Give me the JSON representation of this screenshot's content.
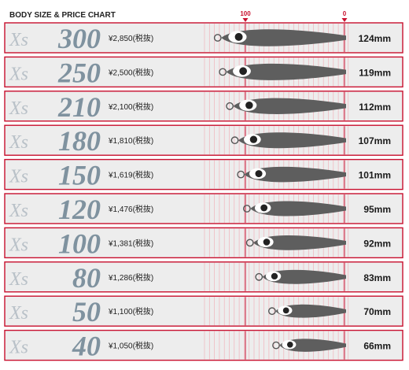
{
  "chart_data": {
    "type": "table",
    "title": "BODY SIZE & PRICE CHART",
    "scale_labels": [
      "100",
      "0"
    ],
    "colors": {
      "accent": "#c8102e",
      "row_bg": "#ededed",
      "lure_body": "#5e5e5e",
      "weight_text": "#7f929f",
      "brand_text": "#b9c1c8"
    },
    "rows": [
      {
        "brand": "Xs",
        "weight": "300",
        "price": "¥2,850(税抜)",
        "length": "124mm",
        "length_mm": 124
      },
      {
        "brand": "Xs",
        "weight": "250",
        "price": "¥2,500(税抜)",
        "length": "119mm",
        "length_mm": 119
      },
      {
        "brand": "Xs",
        "weight": "210",
        "price": "¥2,100(税抜)",
        "length": "112mm",
        "length_mm": 112
      },
      {
        "brand": "Xs",
        "weight": "180",
        "price": "¥1,810(税抜)",
        "length": "107mm",
        "length_mm": 107
      },
      {
        "brand": "Xs",
        "weight": "150",
        "price": "¥1,619(税抜)",
        "length": "101mm",
        "length_mm": 101
      },
      {
        "brand": "Xs",
        "weight": "120",
        "price": "¥1,476(税抜)",
        "length": "95mm",
        "length_mm": 95
      },
      {
        "brand": "Xs",
        "weight": "100",
        "price": "¥1,381(税抜)",
        "length": "92mm",
        "length_mm": 92
      },
      {
        "brand": "Xs",
        "weight": "80",
        "price": "¥1,286(税抜)",
        "length": "83mm",
        "length_mm": 83
      },
      {
        "brand": "Xs",
        "weight": "50",
        "price": "¥1,100(税抜)",
        "length": "70mm",
        "length_mm": 70
      },
      {
        "brand": "Xs",
        "weight": "40",
        "price": "¥1,050(税抜)",
        "length": "66mm",
        "length_mm": 66
      }
    ]
  }
}
